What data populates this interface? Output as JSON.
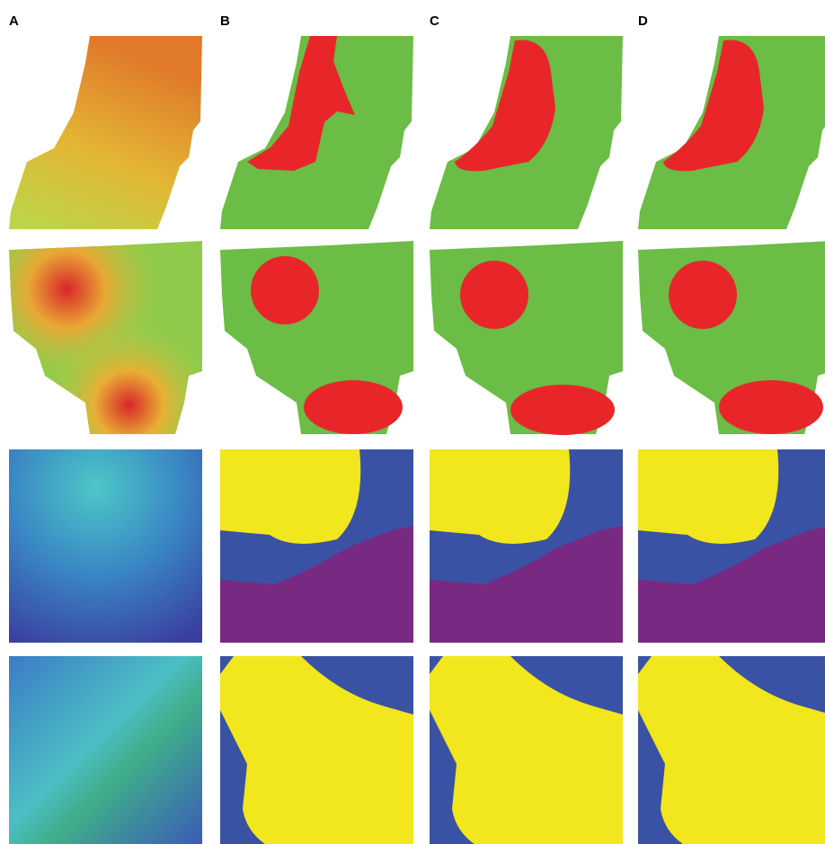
{
  "panels": {
    "labels": [
      "A",
      "B",
      "C",
      "D"
    ]
  }
}
